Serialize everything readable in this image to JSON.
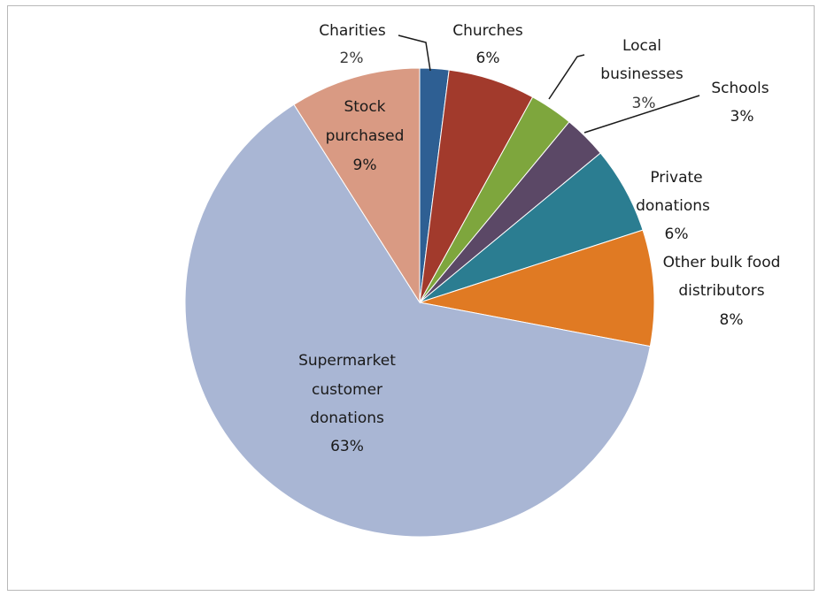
{
  "chart_data": {
    "type": "pie",
    "title": "",
    "start_angle_deg": 90,
    "direction": "clockwise",
    "slices": [
      {
        "name": "Charities",
        "value": 2,
        "label": "2%",
        "color": "#2e5f93"
      },
      {
        "name": "Churches",
        "value": 6,
        "label": "6%",
        "color": "#a23a2c"
      },
      {
        "name": "Local businesses",
        "value": 3,
        "label": "3%",
        "color": "#7ea63d"
      },
      {
        "name": "Schools",
        "value": 3,
        "label": "3%",
        "color": "#5b4866"
      },
      {
        "name": "Private donations",
        "value": 6,
        "label": "6%",
        "color": "#2b7d91"
      },
      {
        "name": "Other bulk food distributors",
        "value": 8,
        "label": "8%",
        "color": "#e07a23"
      },
      {
        "name": "Supermarket customer donations",
        "value": 63,
        "label": "63%",
        "color": "#a9b6d4"
      },
      {
        "name": "Stock purchased",
        "value": 9,
        "label": "9%",
        "color": "#d99a83"
      }
    ]
  },
  "labels": {
    "charities": {
      "line1": "Charities",
      "pct": "2%"
    },
    "churches": {
      "line1": "Churches",
      "pct": "6%"
    },
    "local_businesses": {
      "line1": "Local",
      "line2": "businesses",
      "pct": "3%"
    },
    "schools": {
      "line1": "Schools",
      "pct": "3%"
    },
    "private_donations": {
      "line1": "Private",
      "line2": "donations",
      "pct": "6%"
    },
    "other_bulk": {
      "line1": "Other bulk food",
      "line2": "distributors",
      "pct": "8%"
    },
    "supermarket": {
      "line1": "Supermarket",
      "line2": "customer",
      "line3": "donations",
      "pct": "63%"
    },
    "stock": {
      "line1": "Stock",
      "line2": "purchased",
      "pct": "9%"
    }
  }
}
